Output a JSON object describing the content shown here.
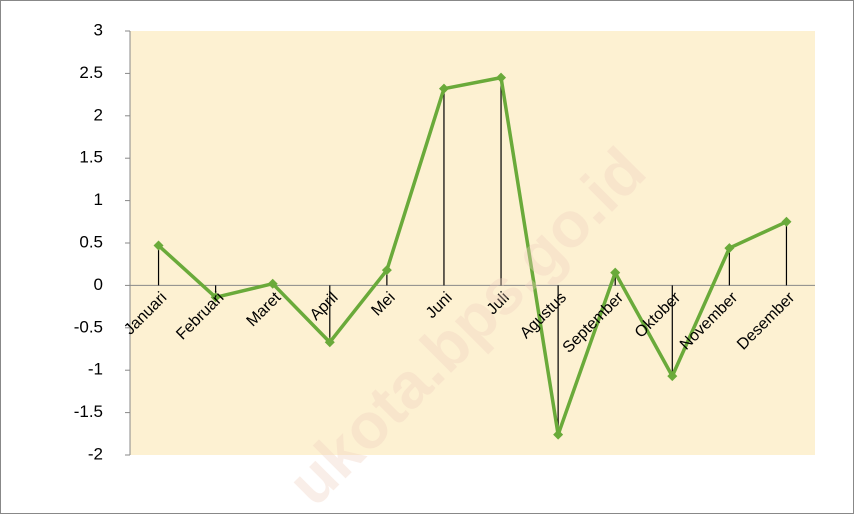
{
  "chart_data": {
    "type": "line",
    "categories": [
      "Januari",
      "Februari",
      "Maret",
      "April",
      "Mei",
      "Juni",
      "Juli",
      "Agustus",
      "September",
      "Oktober",
      "November",
      "Desember"
    ],
    "series": [
      {
        "color": "#6aaa3a",
        "values": [
          0.47,
          -0.14,
          0.02,
          -0.67,
          0.18,
          2.32,
          2.45,
          -1.76,
          0.15,
          -1.07,
          0.44,
          0.75
        ]
      }
    ],
    "ylim": [
      -2,
      3
    ],
    "yticks": [
      -2,
      -1.5,
      -1,
      -0.5,
      0,
      0.5,
      1,
      1.5,
      2,
      2.5,
      3
    ],
    "drop_lines": true,
    "plot_background": "#fdf1d2",
    "watermark": "ukota.bps.go.id"
  }
}
